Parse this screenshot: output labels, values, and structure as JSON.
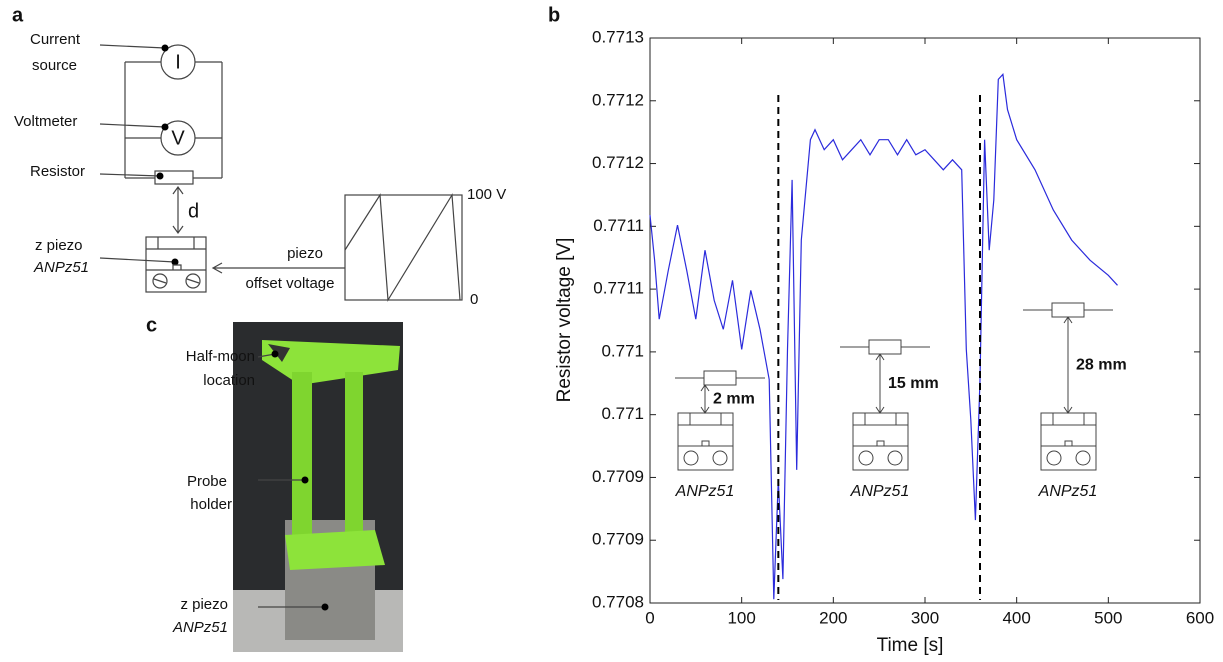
{
  "panel_labels": [
    "a",
    "b",
    "c"
  ],
  "circuit": {
    "current_source": [
      "Current",
      "source"
    ],
    "current_symbol": "I",
    "voltmeter": "Voltmeter",
    "voltmeter_symbol": "V",
    "resistor": "Resistor",
    "distance": "d",
    "piezo": [
      "z piezo",
      "ANPz51"
    ],
    "drive": [
      "piezo",
      "offset voltage"
    ],
    "drive_max": "100 V",
    "drive_min": "0"
  },
  "photo": {
    "half_moon": [
      "Half-moon",
      "location"
    ],
    "probe_holder": [
      "Probe",
      "holder"
    ],
    "piezo": [
      "z piezo",
      "ANPz51"
    ]
  },
  "chart_data": {
    "type": "line",
    "xlabel": "Time [s]",
    "ylabel": "Resistor voltage [V]",
    "xlim": [
      0,
      600
    ],
    "xticks": [
      0,
      100,
      200,
      300,
      400,
      500,
      600
    ],
    "ylim": [
      0.7708,
      0.77125
    ],
    "yticks": [
      {
        "value": 0.7708,
        "label": "0.7708"
      },
      {
        "value": 0.77085,
        "label": "0.7709"
      },
      {
        "value": 0.7709,
        "label": "0.7709"
      },
      {
        "value": 0.77095,
        "label": "0.771"
      },
      {
        "value": 0.771,
        "label": "0.771"
      },
      {
        "value": 0.77105,
        "label": "0.7711"
      },
      {
        "value": 0.7711,
        "label": "0.7711"
      },
      {
        "value": 0.77115,
        "label": "0.7712"
      },
      {
        "value": 0.7712,
        "label": "0.7712"
      },
      {
        "value": 0.77125,
        "label": "0.7713"
      }
    ],
    "vlines": [
      140,
      360
    ],
    "insets": [
      {
        "distance": "2 mm",
        "label": "ANPz51"
      },
      {
        "distance": "15 mm",
        "label": "ANPz51"
      },
      {
        "distance": "28 mm",
        "label": "ANPz51"
      }
    ],
    "series": [
      {
        "color": "#2b2bdc",
        "x": [
          0,
          5,
          10,
          20,
          30,
          40,
          50,
          60,
          70,
          80,
          90,
          100,
          110,
          120,
          130,
          135,
          140,
          145,
          150,
          155,
          160,
          165,
          175,
          180,
          190,
          200,
          210,
          220,
          230,
          240,
          250,
          260,
          270,
          280,
          290,
          300,
          310,
          320,
          330,
          340,
          345,
          350,
          355,
          360,
          365,
          370,
          375,
          380,
          385,
          390,
          400,
          420,
          440,
          460,
          480,
          500,
          510
        ],
        "values": [
          0.771109,
          0.771073,
          0.771026,
          0.771065,
          0.771101,
          0.771065,
          0.771026,
          0.771081,
          0.771041,
          0.771018,
          0.771057,
          0.771002,
          0.771049,
          0.771018,
          0.770978,
          0.770803,
          0.770898,
          0.770819,
          0.771002,
          0.771137,
          0.770906,
          0.771089,
          0.771169,
          0.771177,
          0.771161,
          0.771169,
          0.771153,
          0.771161,
          0.771169,
          0.771157,
          0.771169,
          0.771169,
          0.771157,
          0.771169,
          0.771157,
          0.771161,
          0.771153,
          0.771145,
          0.771153,
          0.771145,
          0.771002,
          0.770946,
          0.770866,
          0.770978,
          0.771169,
          0.771081,
          0.771121,
          0.771217,
          0.771221,
          0.771193,
          0.771169,
          0.771145,
          0.771113,
          0.771089,
          0.771073,
          0.771061,
          0.771053
        ]
      }
    ]
  }
}
